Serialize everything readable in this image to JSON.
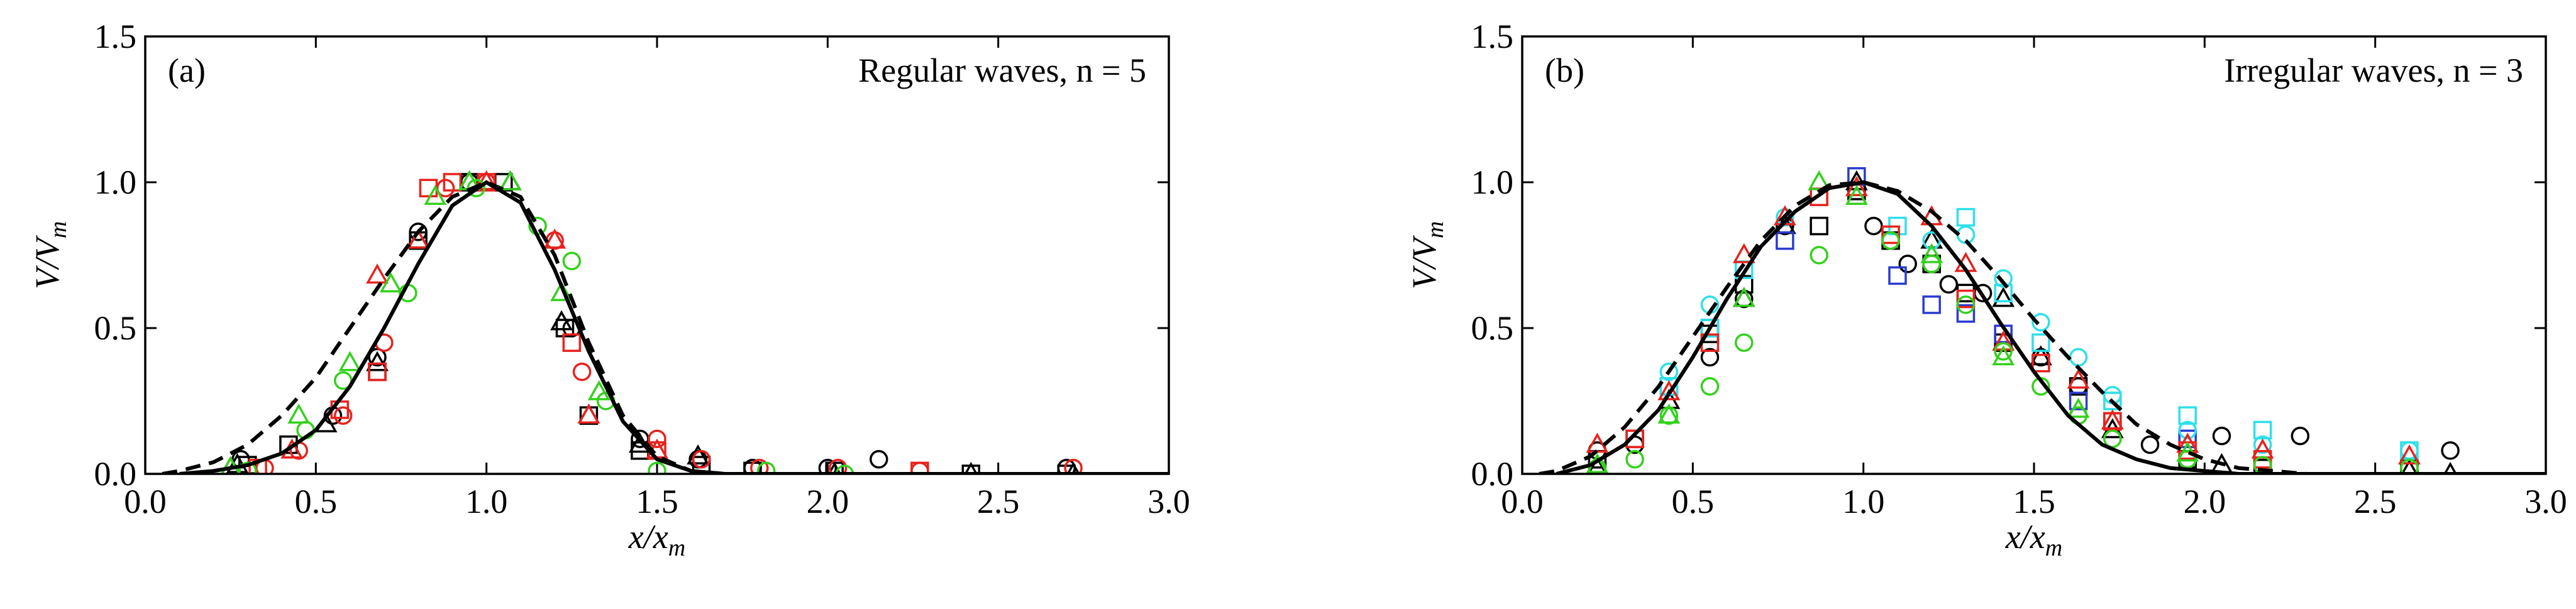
{
  "chart_data": [
    {
      "type": "scatter",
      "panel": "(a)",
      "annotation": "Regular waves, n = 5",
      "xlabel": "x/x",
      "xlabel_sub": "m",
      "ylabel": "V/V",
      "ylabel_sub": "m",
      "xlim": [
        0,
        3
      ],
      "ylim": [
        0,
        1.5
      ],
      "xticks": [
        {
          "value": 0,
          "label": "0.0"
        },
        {
          "value": 0.5,
          "label": "0.5"
        },
        {
          "value": 1,
          "label": "1.0"
        },
        {
          "value": 1.5,
          "label": "1.5"
        },
        {
          "value": 2,
          "label": "2.0"
        },
        {
          "value": 2.5,
          "label": "2.5"
        },
        {
          "value": 3,
          "label": "3.0"
        }
      ],
      "yticks": [
        {
          "value": 0,
          "label": "0.0"
        },
        {
          "value": 0.5,
          "label": "0.5"
        },
        {
          "value": 1,
          "label": "1.0"
        },
        {
          "value": 1.5,
          "label": "1.5"
        }
      ],
      "series": [
        {
          "marker": "circle",
          "color": "#000000",
          "x": [
            0.28,
            0.55,
            0.68,
            0.8,
            0.95,
            1.25,
            1.45,
            1.62,
            1.78,
            2.0,
            2.15,
            2.7
          ],
          "values": [
            0.05,
            0.2,
            0.4,
            0.83,
            1.0,
            0.5,
            0.12,
            0.05,
            0.02,
            0.02,
            0.05,
            0.02
          ]
        },
        {
          "marker": "square",
          "color": "#000000",
          "x": [
            0.3,
            0.42,
            0.68,
            0.8,
            0.95,
            1.05,
            1.23,
            1.3,
            1.45,
            1.63,
            1.78,
            2.02,
            2.42,
            2.7
          ],
          "values": [
            0.03,
            0.1,
            0.35,
            0.8,
            1.0,
            1.0,
            0.5,
            0.2,
            0.08,
            0.03,
            0.01,
            0.01,
            0.0,
            0.0
          ]
        },
        {
          "marker": "triangle",
          "color": "#000000",
          "x": [
            0.27,
            0.53,
            0.68,
            0.8,
            0.95,
            1.07,
            1.22,
            1.3,
            1.45,
            1.62,
            2.02,
            2.42,
            2.72
          ],
          "values": [
            0.03,
            0.17,
            0.38,
            0.8,
            1.0,
            1.0,
            0.52,
            0.2,
            0.1,
            0.06,
            0.0,
            0.0,
            0.0
          ]
        },
        {
          "marker": "circle",
          "color": "#e8221d",
          "x": [
            0.35,
            0.45,
            0.58,
            0.7,
            0.88,
            1.0,
            1.2,
            1.28,
            1.5,
            1.63,
            1.8,
            2.03,
            2.27,
            2.72
          ],
          "values": [
            0.02,
            0.08,
            0.2,
            0.45,
            0.98,
            1.0,
            0.8,
            0.35,
            0.12,
            0.05,
            0.02,
            0.02,
            0.01,
            0.02
          ]
        },
        {
          "marker": "square",
          "color": "#e8221d",
          "x": [
            0.33,
            0.57,
            0.68,
            0.83,
            0.9,
            1.0,
            1.25,
            1.5,
            2.27
          ],
          "values": [
            0.02,
            0.22,
            0.35,
            0.98,
            1.0,
            1.0,
            0.45,
            0.08,
            0.01
          ]
        },
        {
          "marker": "triangle",
          "color": "#e8221d",
          "x": [
            0.25,
            0.43,
            0.68,
            0.8,
            1.0,
            1.2,
            1.3,
            1.5
          ],
          "values": [
            0.02,
            0.08,
            0.68,
            0.8,
            1.0,
            0.8,
            0.2,
            0.08
          ]
        },
        {
          "marker": "circle",
          "color": "#33d11c",
          "x": [
            0.3,
            0.47,
            0.58,
            0.77,
            0.97,
            1.15,
            1.25,
            1.35,
            1.5,
            1.82,
            2.05
          ],
          "values": [
            0.01,
            0.15,
            0.32,
            0.62,
            0.98,
            0.85,
            0.73,
            0.25,
            0.01,
            0.01,
            0.0
          ]
        },
        {
          "marker": "triangle",
          "color": "#33d11c",
          "x": [
            0.25,
            0.45,
            0.6,
            0.72,
            0.85,
            0.95,
            1.07,
            1.22,
            1.33
          ],
          "values": [
            0.02,
            0.2,
            0.38,
            0.65,
            0.95,
            1.0,
            1.0,
            0.62,
            0.28
          ]
        },
        {
          "marker": "line",
          "style": "solid",
          "color": "#000000",
          "x": [
            0.1,
            0.2,
            0.3,
            0.4,
            0.5,
            0.6,
            0.7,
            0.8,
            0.9,
            1.0,
            1.1,
            1.2,
            1.3,
            1.4,
            1.5,
            1.6,
            1.7,
            3.0
          ],
          "values": [
            0,
            0.01,
            0.03,
            0.07,
            0.15,
            0.3,
            0.5,
            0.72,
            0.92,
            1.0,
            0.93,
            0.7,
            0.42,
            0.18,
            0.05,
            0.01,
            0,
            0
          ]
        },
        {
          "marker": "line",
          "style": "dashed",
          "color": "#000000",
          "x": [
            0.05,
            0.1,
            0.2,
            0.3,
            0.4,
            0.5,
            0.6,
            0.7,
            0.8,
            0.9,
            1.0,
            1.1,
            1.2,
            1.3,
            1.4,
            1.5,
            1.6,
            1.7,
            3.0
          ],
          "values": [
            0,
            0.01,
            0.04,
            0.1,
            0.2,
            0.33,
            0.5,
            0.67,
            0.83,
            0.95,
            1.0,
            0.95,
            0.75,
            0.45,
            0.2,
            0.06,
            0.01,
            0,
            0
          ]
        }
      ]
    },
    {
      "type": "scatter",
      "panel": "(b)",
      "annotation": "Irregular waves, n = 3",
      "xlabel": "x/x",
      "xlabel_sub": "m",
      "ylabel": "V/V",
      "ylabel_sub": "m",
      "xlim": [
        0,
        3
      ],
      "ylim": [
        0,
        1.5
      ],
      "xticks": [
        {
          "value": 0,
          "label": "0.0"
        },
        {
          "value": 0.5,
          "label": "0.5"
        },
        {
          "value": 1,
          "label": "1.0"
        },
        {
          "value": 1.5,
          "label": "1.5"
        },
        {
          "value": 2,
          "label": "2.0"
        },
        {
          "value": 2.5,
          "label": "2.5"
        },
        {
          "value": 3,
          "label": "3.0"
        }
      ],
      "yticks": [
        {
          "value": 0,
          "label": "0.0"
        },
        {
          "value": 0.5,
          "label": "0.5"
        },
        {
          "value": 1,
          "label": "1.0"
        },
        {
          "value": 1.5,
          "label": "1.5"
        }
      ],
      "series": [
        {
          "marker": "circle",
          "color": "#000000",
          "x": [
            0.22,
            0.33,
            0.55,
            0.65,
            0.77,
            1.03,
            1.13,
            1.25,
            1.35,
            1.52,
            1.63,
            1.84,
            2.05,
            2.28,
            2.72
          ],
          "values": [
            0.08,
            0.1,
            0.4,
            0.6,
            0.85,
            0.85,
            0.72,
            0.65,
            0.62,
            0.4,
            0.3,
            0.1,
            0.13,
            0.13,
            0.08
          ]
        },
        {
          "marker": "square",
          "color": "#000000",
          "x": [
            0.22,
            0.33,
            0.43,
            0.55,
            0.65,
            0.87,
            0.98,
            1.08,
            1.2,
            1.3,
            1.41,
            1.63,
            1.73,
            1.95,
            2.17,
            2.6
          ],
          "values": [
            0.05,
            0.12,
            0.3,
            0.48,
            0.65,
            0.85,
            0.97,
            0.8,
            0.72,
            0.62,
            0.45,
            0.3,
            0.18,
            0.05,
            0.02,
            0.02
          ]
        },
        {
          "marker": "triangle",
          "color": "#000000",
          "x": [
            0.22,
            0.43,
            0.65,
            0.77,
            0.98,
            1.2,
            1.41,
            1.52,
            1.73,
            2.05,
            2.6,
            2.72
          ],
          "values": [
            0.02,
            0.25,
            0.6,
            0.85,
            1.0,
            0.8,
            0.6,
            0.4,
            0.15,
            0.03,
            0.01,
            0.0
          ]
        },
        {
          "marker": "square",
          "color": "#2a3bd1",
          "x": [
            0.55,
            0.77,
            0.98,
            1.1,
            1.2,
            1.3,
            1.41,
            1.63,
            1.95
          ],
          "values": [
            0.5,
            0.8,
            1.02,
            0.68,
            0.58,
            0.55,
            0.48,
            0.25,
            0.12
          ]
        },
        {
          "marker": "square",
          "color": "#2ee0ea",
          "x": [
            0.43,
            0.55,
            0.65,
            0.87,
            1.1,
            1.3,
            1.41,
            1.52,
            1.73,
            1.95,
            2.17,
            2.6
          ],
          "values": [
            0.3,
            0.5,
            0.7,
            0.95,
            0.85,
            0.88,
            0.62,
            0.45,
            0.25,
            0.2,
            0.15,
            0.08
          ]
        },
        {
          "marker": "circle",
          "color": "#2ee0ea",
          "x": [
            0.43,
            0.55,
            0.77,
            1.2,
            1.3,
            1.41,
            1.52,
            1.63,
            1.73,
            1.95,
            2.17,
            2.6
          ],
          "values": [
            0.35,
            0.58,
            0.88,
            0.8,
            0.82,
            0.67,
            0.52,
            0.4,
            0.27,
            0.15,
            0.1,
            0.08
          ]
        },
        {
          "marker": "triangle",
          "color": "#e8221d",
          "x": [
            0.22,
            0.43,
            0.65,
            0.77,
            0.98,
            1.2,
            1.3,
            1.41,
            1.63,
            1.73,
            1.95,
            2.17,
            2.6
          ],
          "values": [
            0.1,
            0.28,
            0.75,
            0.88,
            0.98,
            0.88,
            0.72,
            0.45,
            0.32,
            0.18,
            0.1,
            0.08,
            0.06
          ]
        },
        {
          "marker": "square",
          "color": "#e8221d",
          "x": [
            0.33,
            0.55,
            0.87,
            1.08,
            1.3,
            1.52,
            1.73,
            1.95,
            2.17
          ],
          "values": [
            0.12,
            0.45,
            0.95,
            0.82,
            0.6,
            0.38,
            0.18,
            0.08,
            0.05
          ]
        },
        {
          "marker": "circle",
          "color": "#33d11c",
          "x": [
            0.22,
            0.33,
            0.43,
            0.55,
            0.65,
            0.87,
            1.08,
            1.2,
            1.3,
            1.41,
            1.52,
            1.63,
            1.73,
            1.95,
            2.17,
            2.6
          ],
          "values": [
            0.02,
            0.05,
            0.2,
            0.3,
            0.45,
            0.75,
            0.8,
            0.72,
            0.58,
            0.42,
            0.3,
            0.2,
            0.12,
            0.05,
            0.03,
            0.02
          ]
        },
        {
          "marker": "triangle",
          "color": "#33d11c",
          "x": [
            0.22,
            0.43,
            0.65,
            0.87,
            0.98,
            1.2,
            1.41,
            1.63,
            1.95
          ],
          "values": [
            0.03,
            0.2,
            0.6,
            1.0,
            0.95,
            0.75,
            0.4,
            0.22,
            0.07
          ]
        },
        {
          "marker": "line",
          "style": "solid",
          "color": "#000000",
          "x": [
            0.1,
            0.2,
            0.3,
            0.4,
            0.5,
            0.6,
            0.7,
            0.8,
            0.9,
            1.0,
            1.1,
            1.2,
            1.3,
            1.4,
            1.5,
            1.6,
            1.7,
            1.8,
            1.9,
            2.0,
            2.1,
            3.0
          ],
          "values": [
            0,
            0.03,
            0.1,
            0.22,
            0.4,
            0.6,
            0.78,
            0.9,
            0.98,
            1.0,
            0.96,
            0.85,
            0.7,
            0.52,
            0.35,
            0.2,
            0.1,
            0.05,
            0.02,
            0.01,
            0,
            0
          ]
        },
        {
          "marker": "line",
          "style": "dashed",
          "color": "#000000",
          "x": [
            0.05,
            0.1,
            0.2,
            0.3,
            0.4,
            0.5,
            0.6,
            0.7,
            0.8,
            0.9,
            1.0,
            1.1,
            1.2,
            1.3,
            1.4,
            1.5,
            1.6,
            1.7,
            1.8,
            1.9,
            2.0,
            2.1,
            2.2,
            2.3,
            3.0
          ],
          "values": [
            0,
            0.01,
            0.06,
            0.16,
            0.3,
            0.47,
            0.64,
            0.8,
            0.92,
            0.99,
            1.0,
            0.97,
            0.9,
            0.8,
            0.67,
            0.53,
            0.4,
            0.28,
            0.17,
            0.1,
            0.05,
            0.02,
            0.01,
            0,
            0
          ]
        }
      ]
    }
  ]
}
